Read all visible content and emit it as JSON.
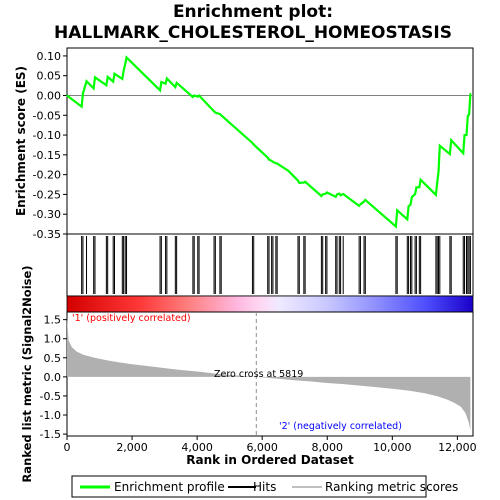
{
  "title_line1": "Enrichment plot:",
  "title_line2": "HALLMARK_CHOLESTEROL_HOMEOSTASIS",
  "legend": {
    "enrichment_label": "Enrichment profile",
    "hits_label": "Hits",
    "metric_label": "Ranking metric scores"
  },
  "annotations": {
    "positive": "'1' (positively correlated)",
    "negative": "'2' (negatively correlated)",
    "zero_cross": "Zero cross at 5819"
  },
  "colors": {
    "es_line": "#00ff00",
    "hits": "#000000",
    "metric_fill": "#b0b0b0",
    "positive_text": "#ff0000",
    "negative_text": "#0000ff"
  },
  "chart_data": [
    {
      "type": "line",
      "name": "enrichment-score",
      "ylabel": "Enrichment score (ES)",
      "xlim": [
        0,
        12480
      ],
      "ylim": [
        -0.35,
        0.12
      ],
      "yticks": [
        0.1,
        0.05,
        0.0,
        -0.05,
        -0.1,
        -0.15,
        -0.2,
        -0.25,
        -0.3,
        -0.35
      ],
      "ytick_labels": [
        "0.10",
        "0.05",
        "0.00",
        "-0.05",
        "-0.10",
        "-0.15",
        "-0.20",
        "-0.25",
        "-0.30",
        "-0.35"
      ],
      "grid": false,
      "x": [
        0,
        450,
        490,
        600,
        820,
        860,
        1210,
        1250,
        1420,
        1460,
        1700,
        1740,
        1790,
        1830,
        2860,
        2900,
        3030,
        3070,
        3330,
        3370,
        3870,
        3910,
        4020,
        4060,
        4520,
        4560,
        4700,
        4740,
        5700,
        5740,
        6170,
        6210,
        6290,
        6330,
        6420,
        6460,
        6800,
        7100,
        7140,
        7280,
        7320,
        7820,
        7860,
        7950,
        7990,
        8260,
        8300,
        8370,
        8410,
        8490,
        8980,
        9020,
        9130,
        9170,
        10110,
        10150,
        10460,
        10500,
        10560,
        10600,
        10700,
        10740,
        10830,
        10870,
        11340,
        11380,
        11420,
        11460,
        11770,
        11810,
        12180,
        12220,
        12280,
        12320,
        12360,
        12400
      ],
      "y": [
        0.0,
        -0.028,
        0.005,
        0.036,
        0.018,
        0.046,
        0.026,
        0.047,
        0.035,
        0.055,
        0.042,
        0.062,
        0.08,
        0.096,
        0.013,
        0.034,
        0.03,
        0.043,
        0.021,
        0.032,
        -0.004,
        0.0,
        -0.003,
        0.0,
        -0.04,
        -0.043,
        -0.047,
        -0.05,
        -0.12,
        -0.124,
        -0.157,
        -0.162,
        -0.165,
        -0.168,
        -0.171,
        -0.172,
        -0.19,
        -0.215,
        -0.221,
        -0.22,
        -0.218,
        -0.254,
        -0.25,
        -0.248,
        -0.245,
        -0.256,
        -0.25,
        -0.248,
        -0.252,
        -0.249,
        -0.279,
        -0.275,
        -0.268,
        -0.264,
        -0.331,
        -0.29,
        -0.313,
        -0.28,
        -0.276,
        -0.257,
        -0.249,
        -0.232,
        -0.232,
        -0.213,
        -0.251,
        -0.22,
        -0.193,
        -0.127,
        -0.148,
        -0.113,
        -0.146,
        -0.1,
        -0.1,
        -0.052,
        -0.048,
        0.005
      ]
    },
    {
      "type": "scatter",
      "name": "hits",
      "x": [
        450,
        490,
        600,
        820,
        860,
        1210,
        1250,
        1420,
        1460,
        1700,
        1740,
        1790,
        1830,
        2860,
        2900,
        3030,
        3070,
        3330,
        3370,
        3870,
        3910,
        4020,
        4060,
        4520,
        4560,
        4700,
        4740,
        5700,
        5740,
        6170,
        6210,
        6290,
        6330,
        6420,
        6460,
        7100,
        7140,
        7280,
        7320,
        7820,
        7860,
        7950,
        7990,
        8260,
        8300,
        8370,
        8410,
        8490,
        8980,
        9020,
        9130,
        9170,
        10110,
        10150,
        10460,
        10500,
        10560,
        10600,
        10700,
        10740,
        10830,
        10870,
        11340,
        11380,
        11420,
        11460,
        11770,
        11810,
        12180,
        12220,
        12280,
        12320,
        12360,
        12400
      ]
    },
    {
      "type": "area",
      "name": "ranked-list-metric",
      "xlabel": "Rank in Ordered Dataset",
      "ylabel": "Ranked list metric (Signal2Noise)",
      "xlim": [
        0,
        12480
      ],
      "ylim": [
        -1.55,
        1.7
      ],
      "xticks": [
        0,
        2000,
        4000,
        6000,
        8000,
        10000,
        12000
      ],
      "xtick_labels": [
        "0",
        "2,000",
        "4,000",
        "6,000",
        "8,000",
        "10,000",
        "12,000"
      ],
      "yticks": [
        1.5,
        1.0,
        0.5,
        0.0,
        -0.5,
        -1.0,
        -1.5
      ],
      "ytick_labels": [
        "1.5",
        "1.0",
        "0.5",
        "0.0",
        "-0.5",
        "-1.0",
        "-1.5"
      ],
      "zero_cross": 5819,
      "x": [
        0,
        50,
        150,
        300,
        500,
        800,
        1200,
        1600,
        2000,
        2500,
        3000,
        3500,
        4000,
        4500,
        5000,
        5500,
        5819,
        6500,
        7000,
        7500,
        8000,
        8500,
        9000,
        9500,
        10000,
        10500,
        11000,
        11400,
        11700,
        11900,
        12100,
        12250,
        12350,
        12400
      ],
      "y": [
        1.55,
        0.95,
        0.78,
        0.66,
        0.58,
        0.51,
        0.44,
        0.38,
        0.33,
        0.28,
        0.23,
        0.18,
        0.14,
        0.09,
        0.05,
        0.02,
        0.0,
        -0.05,
        -0.09,
        -0.12,
        -0.16,
        -0.19,
        -0.23,
        -0.27,
        -0.31,
        -0.36,
        -0.43,
        -0.51,
        -0.6,
        -0.68,
        -0.78,
        -0.95,
        -1.2,
        -1.4
      ]
    }
  ]
}
